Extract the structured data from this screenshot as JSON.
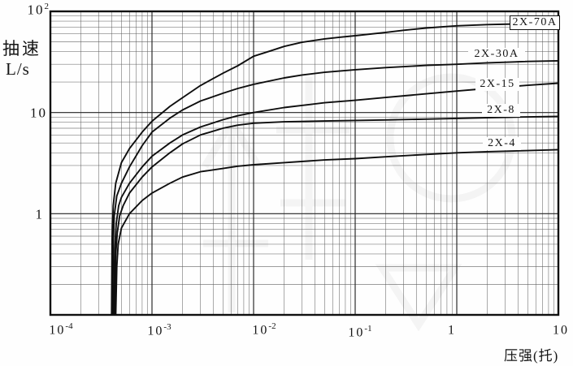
{
  "figure": {
    "kind": "scanned pumping-speed curve chart for 2X series rotary vane vacuum pumps",
    "background": "#fefefe",
    "line_color": "#111111",
    "grid_major_color": "#232323",
    "grid_minor_color": "#5d5d5d"
  },
  "chart_data": {
    "type": "line",
    "x_scale": "log",
    "y_scale": "log",
    "title": "",
    "xlabel": "压强(托)",
    "ylabel": "抽速",
    "ylabel_unit": "L/s",
    "x_range": [
      0.0001,
      10
    ],
    "y_range": [
      0.1,
      100
    ],
    "grid": "log-log major and minor gridlines, both axes",
    "legend_position": "labels at right ends of curves",
    "x_ticks": [
      {
        "base": "10",
        "exp": "-4"
      },
      {
        "base": "10",
        "exp": "-3"
      },
      {
        "base": "10",
        "exp": "-2"
      },
      {
        "base": "10",
        "exp": "-1"
      },
      {
        "base": "1",
        "exp": ""
      },
      {
        "base": "10",
        "exp": ""
      }
    ],
    "y_ticks": [
      {
        "base": "10",
        "exp": "2"
      },
      {
        "base": "10",
        "exp": ""
      },
      {
        "base": "1",
        "exp": ""
      }
    ],
    "series": [
      {
        "name": "2X-70A",
        "boxed_label": true,
        "ultimate_pressure_torr": 0.0004,
        "points": [
          [
            0.0004,
            0.1
          ],
          [
            0.000405,
            0.55
          ],
          [
            0.000415,
            1.2
          ],
          [
            0.00044,
            2.0
          ],
          [
            0.0005,
            3.2
          ],
          [
            0.0006,
            4.4
          ],
          [
            0.0008,
            6.4
          ],
          [
            0.001,
            8.2
          ],
          [
            0.0015,
            11.5
          ],
          [
            0.002,
            14
          ],
          [
            0.003,
            18.5
          ],
          [
            0.005,
            24.5
          ],
          [
            0.007,
            29
          ],
          [
            0.01,
            36
          ],
          [
            0.015,
            41
          ],
          [
            0.02,
            45
          ],
          [
            0.03,
            49.5
          ],
          [
            0.05,
            53.5
          ],
          [
            0.07,
            55.5
          ],
          [
            0.1,
            57.5
          ],
          [
            0.2,
            62
          ],
          [
            0.3,
            65
          ],
          [
            0.5,
            68.5
          ],
          [
            1,
            72
          ],
          [
            2,
            74
          ],
          [
            5,
            75.5
          ],
          [
            10,
            76
          ]
        ]
      },
      {
        "name": "2X-30A",
        "boxed_label": false,
        "ultimate_pressure_torr": 0.00041,
        "points": [
          [
            0.00041,
            0.1
          ],
          [
            0.000415,
            0.5
          ],
          [
            0.000425,
            0.95
          ],
          [
            0.00045,
            1.5
          ],
          [
            0.0005,
            2.0
          ],
          [
            0.0006,
            2.9
          ],
          [
            0.0008,
            4.7
          ],
          [
            0.001,
            6.4
          ],
          [
            0.0015,
            8.8
          ],
          [
            0.002,
            10.6
          ],
          [
            0.003,
            13
          ],
          [
            0.005,
            15.5
          ],
          [
            0.007,
            17.3
          ],
          [
            0.01,
            19
          ],
          [
            0.02,
            22
          ],
          [
            0.03,
            23.5
          ],
          [
            0.05,
            25
          ],
          [
            0.1,
            26.5
          ],
          [
            0.2,
            27.8
          ],
          [
            0.5,
            29.2
          ],
          [
            1,
            30
          ],
          [
            2,
            31
          ],
          [
            5,
            32
          ],
          [
            10,
            32.5
          ]
        ]
      },
      {
        "name": "2X-15",
        "boxed_label": false,
        "ultimate_pressure_torr": 0.00042,
        "points": [
          [
            0.00042,
            0.1
          ],
          [
            0.00043,
            0.45
          ],
          [
            0.000445,
            0.8
          ],
          [
            0.00047,
            1.2
          ],
          [
            0.0005,
            1.45
          ],
          [
            0.0006,
            2.0
          ],
          [
            0.0008,
            2.9
          ],
          [
            0.001,
            3.7
          ],
          [
            0.0015,
            5.0
          ],
          [
            0.002,
            6.0
          ],
          [
            0.003,
            7.2
          ],
          [
            0.005,
            8.5
          ],
          [
            0.007,
            9.3
          ],
          [
            0.01,
            10.0
          ],
          [
            0.02,
            11.2
          ],
          [
            0.05,
            12.5
          ],
          [
            0.1,
            13.2
          ],
          [
            0.2,
            14.1
          ],
          [
            0.5,
            15.3
          ],
          [
            1,
            16.3
          ],
          [
            2,
            17.3
          ],
          [
            5,
            18.6
          ],
          [
            10,
            19.5
          ]
        ]
      },
      {
        "name": "2X-8",
        "boxed_label": false,
        "ultimate_pressure_torr": 0.00043,
        "points": [
          [
            0.00043,
            0.1
          ],
          [
            0.00044,
            0.4
          ],
          [
            0.000455,
            0.65
          ],
          [
            0.00048,
            0.95
          ],
          [
            0.00052,
            1.2
          ],
          [
            0.0006,
            1.6
          ],
          [
            0.0008,
            2.3
          ],
          [
            0.001,
            2.9
          ],
          [
            0.0015,
            4.0
          ],
          [
            0.002,
            4.9
          ],
          [
            0.003,
            6.0
          ],
          [
            0.005,
            7.0
          ],
          [
            0.007,
            7.5
          ],
          [
            0.01,
            7.85
          ],
          [
            0.02,
            8.1
          ],
          [
            0.05,
            8.25
          ],
          [
            0.1,
            8.35
          ],
          [
            0.2,
            8.45
          ],
          [
            0.5,
            8.6
          ],
          [
            1,
            8.75
          ],
          [
            2,
            8.9
          ],
          [
            5,
            9.05
          ],
          [
            10,
            9.15
          ]
        ]
      },
      {
        "name": "2X-4",
        "boxed_label": false,
        "ultimate_pressure_torr": 0.00044,
        "points": [
          [
            0.00044,
            0.1
          ],
          [
            0.00045,
            0.3
          ],
          [
            0.000465,
            0.5
          ],
          [
            0.0005,
            0.72
          ],
          [
            0.0006,
            1.0
          ],
          [
            0.0008,
            1.35
          ],
          [
            0.001,
            1.6
          ],
          [
            0.0015,
            2.0
          ],
          [
            0.002,
            2.3
          ],
          [
            0.003,
            2.6
          ],
          [
            0.005,
            2.8
          ],
          [
            0.007,
            2.95
          ],
          [
            0.01,
            3.05
          ],
          [
            0.02,
            3.2
          ],
          [
            0.05,
            3.4
          ],
          [
            0.1,
            3.5
          ],
          [
            0.2,
            3.65
          ],
          [
            0.5,
            3.85
          ],
          [
            1,
            4.0
          ],
          [
            2,
            4.1
          ],
          [
            5,
            4.2
          ],
          [
            10,
            4.3
          ]
        ]
      }
    ]
  }
}
